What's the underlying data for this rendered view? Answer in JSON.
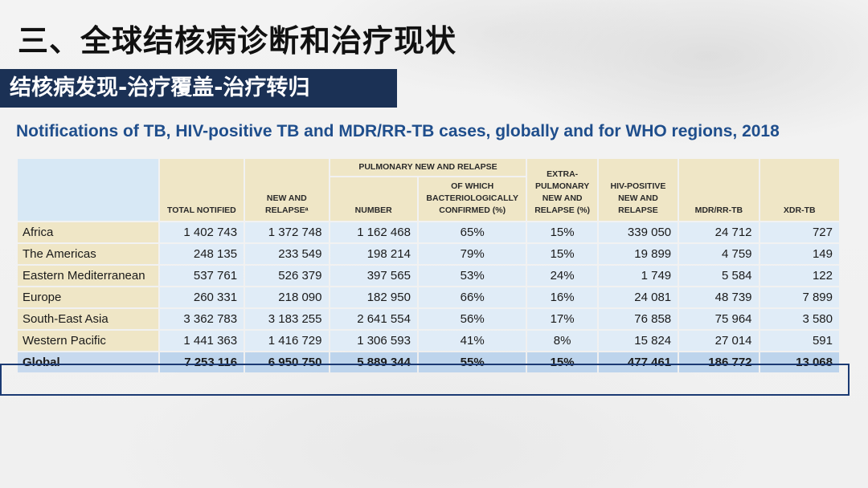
{
  "title": "三、全球结核病诊断和治疗现状",
  "subtitle": "结核病发现-治疗覆盖-治疗转归",
  "table": {
    "caption": "Notifications of TB, HIV-positive TB and MDR/RR-TB cases, globally and for WHO regions, 2018",
    "group_header": "PULMONARY NEW AND RELAPSE",
    "columns": [
      "TOTAL NOTIFIED",
      "NEW AND RELAPSEᵃ",
      "NUMBER",
      "OF WHICH BACTERIOLOGICALLY CONFIRMED (%)",
      "EXTRA-PULMONARY NEW AND RELAPSE (%)",
      "HIV-POSITIVE NEW AND RELAPSE",
      "MDR/RR-TB",
      "XDR-TB"
    ],
    "rows": [
      {
        "region": "Africa",
        "values": [
          "1 402 743",
          "1 372 748",
          "1 162 468",
          "65%",
          "15%",
          "339 050",
          "24 712",
          "727"
        ]
      },
      {
        "region": "The Americas",
        "values": [
          "248 135",
          "233 549",
          "198 214",
          "79%",
          "15%",
          "19 899",
          "4 759",
          "149"
        ]
      },
      {
        "region": "Eastern Mediterranean",
        "values": [
          "537 761",
          "526 379",
          "397 565",
          "53%",
          "24%",
          "1 749",
          "5 584",
          "122"
        ]
      },
      {
        "region": "Europe",
        "values": [
          "260 331",
          "218 090",
          "182 950",
          "66%",
          "16%",
          "24 081",
          "48 739",
          "7 899"
        ]
      },
      {
        "region": "South-East Asia",
        "values": [
          "3 362 783",
          "3 183 255",
          "2 641 554",
          "56%",
          "17%",
          "76 858",
          "75 964",
          "3 580"
        ]
      },
      {
        "region": "Western Pacific",
        "values": [
          "1 441 363",
          "1 416 729",
          "1 306 593",
          "41%",
          "8%",
          "15 824",
          "27 014",
          "591"
        ]
      }
    ],
    "global_row": {
      "region": "Global",
      "values": [
        "7 253 116",
        "6 950 750",
        "5 889 344",
        "55%",
        "15%",
        "477 461",
        "186 772",
        "13 068"
      ]
    }
  },
  "colors": {
    "title_bar": "#1b3155",
    "caption": "#1f4e8c",
    "header_cell": "#efe6c6",
    "data_cell": "#e0ecf7",
    "global_row": "#bdd4ec",
    "highlight_border": "#1b3a73"
  }
}
